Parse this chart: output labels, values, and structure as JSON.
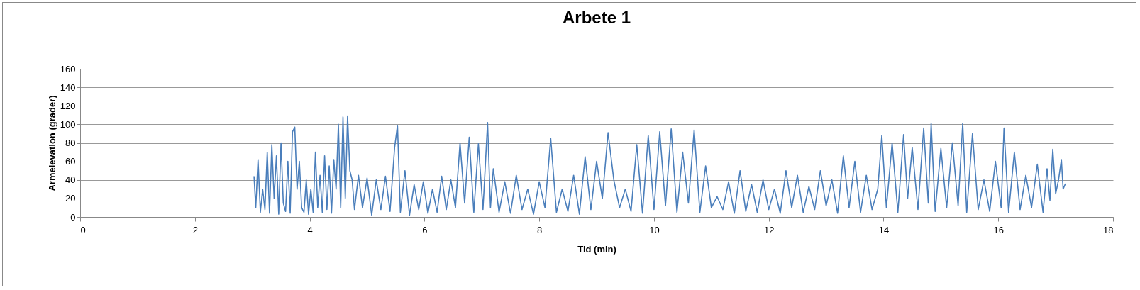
{
  "chart_data": {
    "type": "line",
    "title": "Arbete 1",
    "xlabel": "Tid (min)",
    "ylabel": "Armelevation (grader)",
    "xlim": [
      0,
      18
    ],
    "xticks": [
      0,
      2,
      4,
      6,
      8,
      10,
      12,
      14,
      16,
      18
    ],
    "ylim": [
      0,
      160
    ],
    "yticks": [
      0,
      20,
      40,
      60,
      80,
      100,
      120,
      140,
      160
    ],
    "grid": "y",
    "marker": "none",
    "line_style": "solid",
    "x": [
      3.03,
      3.06,
      3.1,
      3.14,
      3.18,
      3.22,
      3.26,
      3.3,
      3.34,
      3.38,
      3.42,
      3.46,
      3.5,
      3.54,
      3.58,
      3.62,
      3.66,
      3.7,
      3.74,
      3.78,
      3.82,
      3.86,
      3.9,
      3.94,
      3.98,
      4.02,
      4.06,
      4.1,
      4.14,
      4.18,
      4.22,
      4.26,
      4.3,
      4.34,
      4.38,
      4.42,
      4.46,
      4.5,
      4.54,
      4.58,
      4.62,
      4.66,
      4.7,
      4.74,
      4.78,
      4.85,
      4.92,
      5.0,
      5.08,
      5.16,
      5.24,
      5.32,
      5.4,
      5.48,
      5.53,
      5.58,
      5.66,
      5.74,
      5.82,
      5.9,
      5.98,
      6.06,
      6.14,
      6.22,
      6.3,
      6.38,
      6.46,
      6.54,
      6.62,
      6.7,
      6.78,
      6.86,
      6.94,
      7.02,
      7.1,
      7.15,
      7.2,
      7.3,
      7.4,
      7.5,
      7.6,
      7.7,
      7.8,
      7.9,
      8.0,
      8.1,
      8.2,
      8.3,
      8.4,
      8.5,
      8.6,
      8.7,
      8.8,
      8.9,
      9.0,
      9.1,
      9.2,
      9.3,
      9.4,
      9.5,
      9.6,
      9.7,
      9.8,
      9.9,
      10.0,
      10.1,
      10.2,
      10.3,
      10.4,
      10.5,
      10.6,
      10.7,
      10.8,
      10.9,
      11.0,
      11.1,
      11.2,
      11.3,
      11.4,
      11.5,
      11.6,
      11.7,
      11.8,
      11.9,
      12.0,
      12.1,
      12.2,
      12.3,
      12.4,
      12.5,
      12.6,
      12.7,
      12.8,
      12.9,
      13.0,
      13.1,
      13.2,
      13.3,
      13.4,
      13.5,
      13.6,
      13.7,
      13.8,
      13.9,
      13.97,
      14.05,
      14.15,
      14.25,
      14.35,
      14.42,
      14.5,
      14.6,
      14.7,
      14.78,
      14.83,
      14.9,
      15.0,
      15.1,
      15.2,
      15.3,
      15.38,
      15.45,
      15.55,
      15.65,
      15.75,
      15.85,
      15.95,
      16.05,
      16.1,
      16.18,
      16.28,
      16.38,
      16.48,
      16.58,
      16.68,
      16.78,
      16.85,
      16.9,
      16.95,
      17.0,
      17.05,
      17.1,
      17.13,
      17.17
    ],
    "values": [
      44,
      10,
      62,
      5,
      30,
      8,
      70,
      4,
      78,
      20,
      66,
      3,
      80,
      15,
      6,
      60,
      4,
      92,
      97,
      30,
      60,
      10,
      5,
      40,
      3,
      30,
      5,
      70,
      10,
      45,
      5,
      66,
      8,
      55,
      4,
      62,
      30,
      100,
      10,
      108,
      20,
      109,
      50,
      40,
      8,
      45,
      10,
      42,
      2,
      40,
      8,
      44,
      6,
      75,
      99,
      5,
      50,
      2,
      35,
      8,
      38,
      4,
      30,
      5,
      44,
      8,
      40,
      10,
      80,
      15,
      86,
      5,
      79,
      8,
      102,
      10,
      52,
      5,
      38,
      4,
      45,
      8,
      30,
      3,
      38,
      10,
      85,
      5,
      30,
      6,
      45,
      3,
      65,
      8,
      60,
      20,
      91,
      40,
      10,
      30,
      6,
      78,
      4,
      88,
      8,
      92,
      12,
      95,
      5,
      70,
      15,
      94,
      5,
      55,
      10,
      22,
      8,
      38,
      4,
      50,
      6,
      35,
      5,
      40,
      8,
      30,
      4,
      50,
      10,
      45,
      5,
      33,
      8,
      50,
      12,
      40,
      4,
      66,
      10,
      60,
      5,
      45,
      8,
      30,
      88,
      10,
      80,
      5,
      89,
      20,
      75,
      8,
      96,
      15,
      101,
      6,
      74,
      10,
      80,
      12,
      101,
      5,
      90,
      8,
      40,
      6,
      60,
      10,
      96,
      5,
      70,
      8,
      45,
      10,
      57,
      5,
      52,
      18,
      73,
      25,
      40,
      62,
      30,
      36
    ]
  }
}
